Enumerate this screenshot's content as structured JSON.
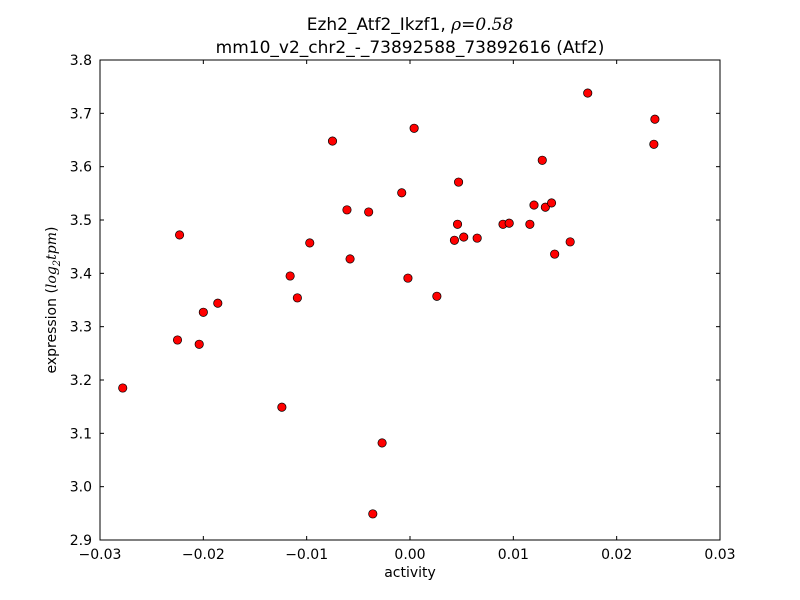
{
  "chart_data": {
    "type": "scatter",
    "title_line1": "Ezh2_Atf2_Ikzf1, ",
    "title_rho": "ρ=0.58",
    "title_line2": "mm10_v2_chr2_-_73892588_73892616 (Atf2)",
    "xlabel": "activity",
    "ylabel": "expression (",
    "ylabel_math": "log",
    "ylabel_sub": "2",
    "ylabel_math2": "tpm",
    "ylabel_end": ")",
    "xlim": [
      -0.03,
      0.03
    ],
    "ylim": [
      2.9,
      3.8
    ],
    "xticks": [
      "−0.03",
      "−0.02",
      "−0.01",
      "0.00",
      "0.01",
      "0.02",
      "0.03"
    ],
    "xtick_values": [
      -0.03,
      -0.02,
      -0.01,
      0,
      0.01,
      0.02,
      0.03
    ],
    "yticks": [
      "2.9",
      "3.0",
      "3.1",
      "3.2",
      "3.3",
      "3.4",
      "3.5",
      "3.6",
      "3.7",
      "3.8"
    ],
    "ytick_values": [
      2.9,
      3.0,
      3.1,
      3.2,
      3.3,
      3.4,
      3.5,
      3.6,
      3.7,
      3.8
    ],
    "grid": false,
    "marker_color": "#ff0000",
    "points": [
      [
        -0.0278,
        3.185
      ],
      [
        -0.0225,
        3.275
      ],
      [
        -0.0223,
        3.472
      ],
      [
        -0.0204,
        3.267
      ],
      [
        -0.02,
        3.327
      ],
      [
        -0.0186,
        3.344
      ],
      [
        -0.0124,
        3.149
      ],
      [
        -0.0116,
        3.395
      ],
      [
        -0.0109,
        3.354
      ],
      [
        -0.0097,
        3.457
      ],
      [
        -0.0075,
        3.648
      ],
      [
        -0.0061,
        3.519
      ],
      [
        -0.0058,
        3.427
      ],
      [
        -0.004,
        3.515
      ],
      [
        -0.0036,
        2.949
      ],
      [
        -0.0027,
        3.082
      ],
      [
        -0.0008,
        3.551
      ],
      [
        -0.0002,
        3.391
      ],
      [
        0.0004,
        3.672
      ],
      [
        0.0026,
        3.357
      ],
      [
        0.0043,
        3.462
      ],
      [
        0.0046,
        3.492
      ],
      [
        0.0047,
        3.571
      ],
      [
        0.0052,
        3.468
      ],
      [
        0.0065,
        3.466
      ],
      [
        0.009,
        3.492
      ],
      [
        0.0096,
        3.494
      ],
      [
        0.0116,
        3.492
      ],
      [
        0.012,
        3.528
      ],
      [
        0.0128,
        3.612
      ],
      [
        0.0131,
        3.524
      ],
      [
        0.0137,
        3.532
      ],
      [
        0.014,
        3.436
      ],
      [
        0.0155,
        3.459
      ],
      [
        0.0172,
        3.738
      ],
      [
        0.0236,
        3.642
      ],
      [
        0.0237,
        3.689
      ]
    ]
  }
}
